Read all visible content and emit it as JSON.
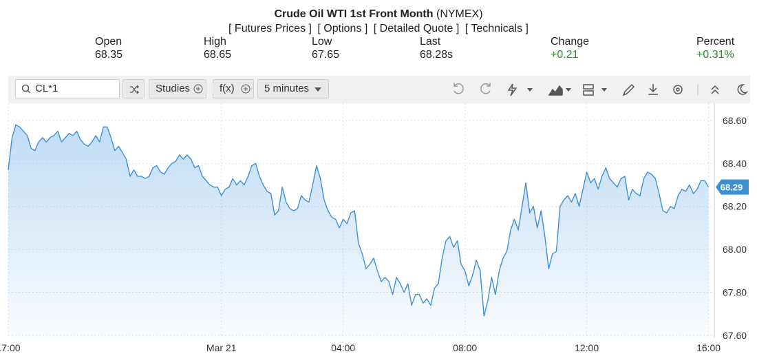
{
  "header": {
    "title": "Crude Oil WTI 1st Front Month",
    "exchange": "(NYMEX)",
    "links": [
      "[ Futures Prices ]",
      "[ Options ]",
      "[ Detailed Quote ]",
      "[ Technicals ]"
    ]
  },
  "quote": [
    {
      "label": "Open",
      "value": "68.35"
    },
    {
      "label": "High",
      "value": "68.65"
    },
    {
      "label": "Low",
      "value": "67.65"
    },
    {
      "label": "Last",
      "value": "68.28s"
    },
    {
      "label": "Change",
      "value": "+0.21"
    },
    {
      "label": "Percent",
      "value": "+0.31%"
    }
  ],
  "toolbar": {
    "symbol": "CL*1",
    "studies": "Studies",
    "fx": "f(x)",
    "interval": "5 minutes"
  },
  "chart_data": {
    "type": "area",
    "color": "#3d8fd6",
    "x": [
      0,
      0.125,
      0.25,
      0.375,
      0.5,
      0.625,
      0.75,
      0.875,
      1,
      1.125,
      1.25,
      1.375,
      1.5,
      1.625,
      1.75,
      1.875,
      2,
      2.125,
      2.25,
      2.375,
      2.5,
      2.625,
      2.75,
      2.875,
      3,
      3.125,
      3.25,
      3.375,
      3.5,
      3.625,
      3.75,
      3.875,
      4,
      4.125,
      4.25,
      4.375,
      4.5,
      4.625,
      4.75,
      4.875,
      5,
      5.125,
      5.25,
      5.375,
      5.5,
      5.625,
      5.75,
      5.875,
      6,
      6.125,
      6.25,
      6.375,
      6.5,
      6.625,
      6.75,
      6.875,
      7,
      7.125,
      7.25,
      7.375,
      7.5,
      7.625,
      7.75,
      7.875,
      8,
      8.125,
      8.25,
      8.375,
      8.5,
      8.625,
      8.75,
      8.875,
      9,
      9.125,
      9.25,
      9.375,
      9.5,
      9.625,
      9.75,
      9.875,
      10,
      10.125,
      10.25,
      10.375,
      10.5,
      10.625,
      10.75,
      10.875,
      11,
      11.125,
      11.25,
      11.375,
      11.5,
      11.625,
      11.75,
      11.875,
      12,
      12.125,
      12.25,
      12.375,
      12.5,
      12.625,
      12.75,
      12.875,
      13,
      13.125,
      13.25,
      13.375,
      13.5,
      13.625,
      13.75,
      13.875,
      14,
      14.125,
      14.25,
      14.375,
      14.5,
      14.625,
      14.75,
      14.875,
      15,
      15.125,
      15.25,
      15.375,
      15.5,
      15.625,
      15.75,
      15.875,
      16,
      16.125,
      16.25,
      16.375,
      16.5,
      16.625,
      16.75,
      16.875,
      17,
      17.125,
      17.25,
      17.375,
      17.5,
      17.625,
      17.75,
      17.875,
      18,
      18.125,
      18.25,
      18.375,
      18.5,
      18.625,
      18.75,
      18.875,
      19,
      19.125,
      19.25,
      19.375,
      19.5,
      19.625,
      19.75,
      19.875,
      20,
      20.125,
      20.25,
      20.375,
      20.5,
      20.625,
      20.75,
      20.875,
      21,
      21.125,
      21.25,
      21.375,
      21.5,
      21.625,
      21.75,
      21.875,
      22,
      22.125,
      22.25,
      22.375,
      22.5,
      22.625,
      22.75,
      22.875,
      23
    ],
    "values": [
      68.37,
      68.52,
      68.58,
      68.57,
      68.55,
      68.53,
      68.47,
      68.46,
      68.5,
      68.52,
      68.5,
      68.52,
      68.53,
      68.55,
      68.5,
      68.52,
      68.54,
      68.53,
      68.55,
      68.51,
      68.49,
      68.48,
      68.5,
      68.53,
      68.5,
      68.57,
      68.57,
      68.52,
      68.46,
      68.48,
      68.45,
      68.42,
      68.34,
      68.37,
      68.34,
      68.34,
      68.33,
      68.34,
      68.38,
      68.39,
      68.36,
      68.35,
      68.38,
      68.4,
      68.41,
      68.44,
      68.42,
      68.44,
      68.42,
      68.38,
      68.39,
      68.34,
      68.32,
      68.3,
      68.29,
      68.29,
      68.25,
      68.28,
      68.29,
      68.33,
      68.3,
      68.32,
      68.3,
      68.34,
      68.39,
      68.4,
      68.34,
      68.3,
      68.27,
      68.26,
      68.16,
      68.18,
      68.29,
      68.22,
      68.19,
      68.18,
      68.19,
      68.25,
      68.23,
      68.22,
      68.3,
      68.39,
      68.33,
      68.23,
      68.18,
      68.15,
      68.14,
      68.1,
      68.14,
      68.12,
      68.17,
      68.18,
      68.03,
      67.98,
      67.91,
      67.93,
      67.96,
      67.9,
      67.85,
      67.87,
      67.85,
      67.79,
      67.87,
      67.84,
      67.8,
      67.84,
      67.74,
      67.79,
      67.79,
      67.75,
      67.77,
      67.74,
      67.82,
      67.84,
      67.96,
      68.04,
      68.06,
      68.01,
      68.04,
      67.93,
      67.9,
      67.83,
      67.88,
      67.95,
      67.9,
      67.69,
      67.76,
      67.87,
      67.79,
      67.9,
      67.96,
      67.99,
      68.09,
      68.14,
      68.09,
      68.2,
      68.31,
      68.17,
      68.2,
      68.1,
      68.18,
      68.06,
      67.91,
      67.98,
      67.99,
      68.2,
      68.23,
      68.25,
      68.22,
      68.26,
      68.2,
      68.28,
      68.36,
      68.31,
      68.33,
      68.28,
      68.34,
      68.38,
      68.33,
      68.31,
      68.29,
      68.33,
      68.34,
      68.23,
      68.28,
      68.26,
      68.25,
      68.33,
      68.36,
      68.35,
      68.33,
      68.26,
      68.18,
      68.17,
      68.2,
      68.19,
      68.25,
      68.28,
      68.27,
      68.3,
      68.26,
      68.28,
      68.32,
      68.32,
      68.29
    ],
    "xlim": [
      0,
      23.19
    ],
    "xticks": [
      {
        "value": 0,
        "label": "17:00"
      },
      {
        "value": 7,
        "label": "Mar 21"
      },
      {
        "value": 11,
        "label": "04:00"
      },
      {
        "value": 15,
        "label": "08:00"
      },
      {
        "value": 19,
        "label": "12:00"
      },
      {
        "value": 23,
        "label": "16:00"
      }
    ],
    "ylim": [
      67.59,
      68.68
    ],
    "yticks": [
      {
        "value": 67.6,
        "label": "67.60"
      },
      {
        "value": 67.8,
        "label": "67.80"
      },
      {
        "value": 68,
        "label": "68.00"
      },
      {
        "value": 68.2,
        "label": "68.20"
      },
      {
        "value": 68.4,
        "label": "68.40"
      },
      {
        "value": 68.6,
        "label": "68.60"
      }
    ],
    "grid": true,
    "last_value": 68.29
  }
}
